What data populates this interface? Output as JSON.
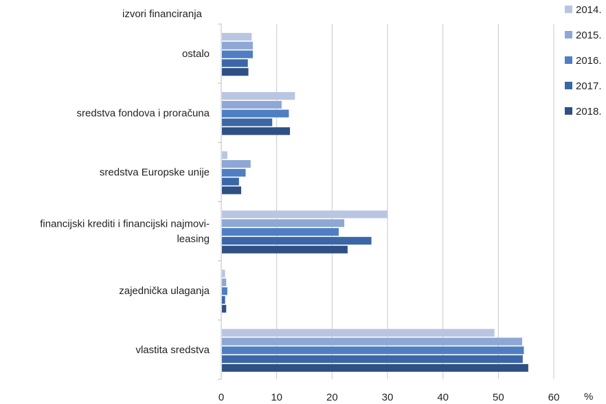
{
  "chart_data": {
    "type": "bar",
    "orientation": "horizontal",
    "ylabel": "izvori financiranja",
    "xlabel": "%",
    "xlim": [
      0,
      60
    ],
    "xticks": [
      0,
      10,
      20,
      30,
      40,
      50,
      60
    ],
    "grid": true,
    "legend_position": "top-right",
    "categories": [
      "ostalo",
      "sredstva fondova i proračuna",
      "sredstva Europske unije",
      "financijski krediti i financijski najmovi-leasing",
      "zajednička ulaganja",
      "vlastita sredstva"
    ],
    "category_lines": [
      [
        "ostalo"
      ],
      [
        "sredstva fondova i proračuna"
      ],
      [
        "sredstva Europske unije"
      ],
      [
        "financijski krediti i financijski najmovi-",
        "leasing"
      ],
      [
        "zajednička ulaganja"
      ],
      [
        "vlastita sredstva"
      ]
    ],
    "series": [
      {
        "name": "2014.",
        "color": "#b9c6e2",
        "values": [
          5.5,
          13.3,
          1.1,
          30.0,
          0.7,
          49.3
        ]
      },
      {
        "name": "2015.",
        "color": "#8ea7d4",
        "values": [
          5.7,
          10.9,
          5.3,
          22.2,
          0.9,
          54.3
        ]
      },
      {
        "name": "2016.",
        "color": "#4f7fc2",
        "values": [
          5.7,
          12.2,
          4.4,
          21.2,
          1.1,
          54.6
        ]
      },
      {
        "name": "2017.",
        "color": "#3b67a8",
        "values": [
          4.8,
          9.2,
          3.2,
          27.1,
          0.7,
          54.4
        ]
      },
      {
        "name": "2018.",
        "color": "#2e5085",
        "values": [
          4.9,
          12.4,
          3.6,
          22.8,
          0.9,
          55.4
        ]
      }
    ]
  }
}
